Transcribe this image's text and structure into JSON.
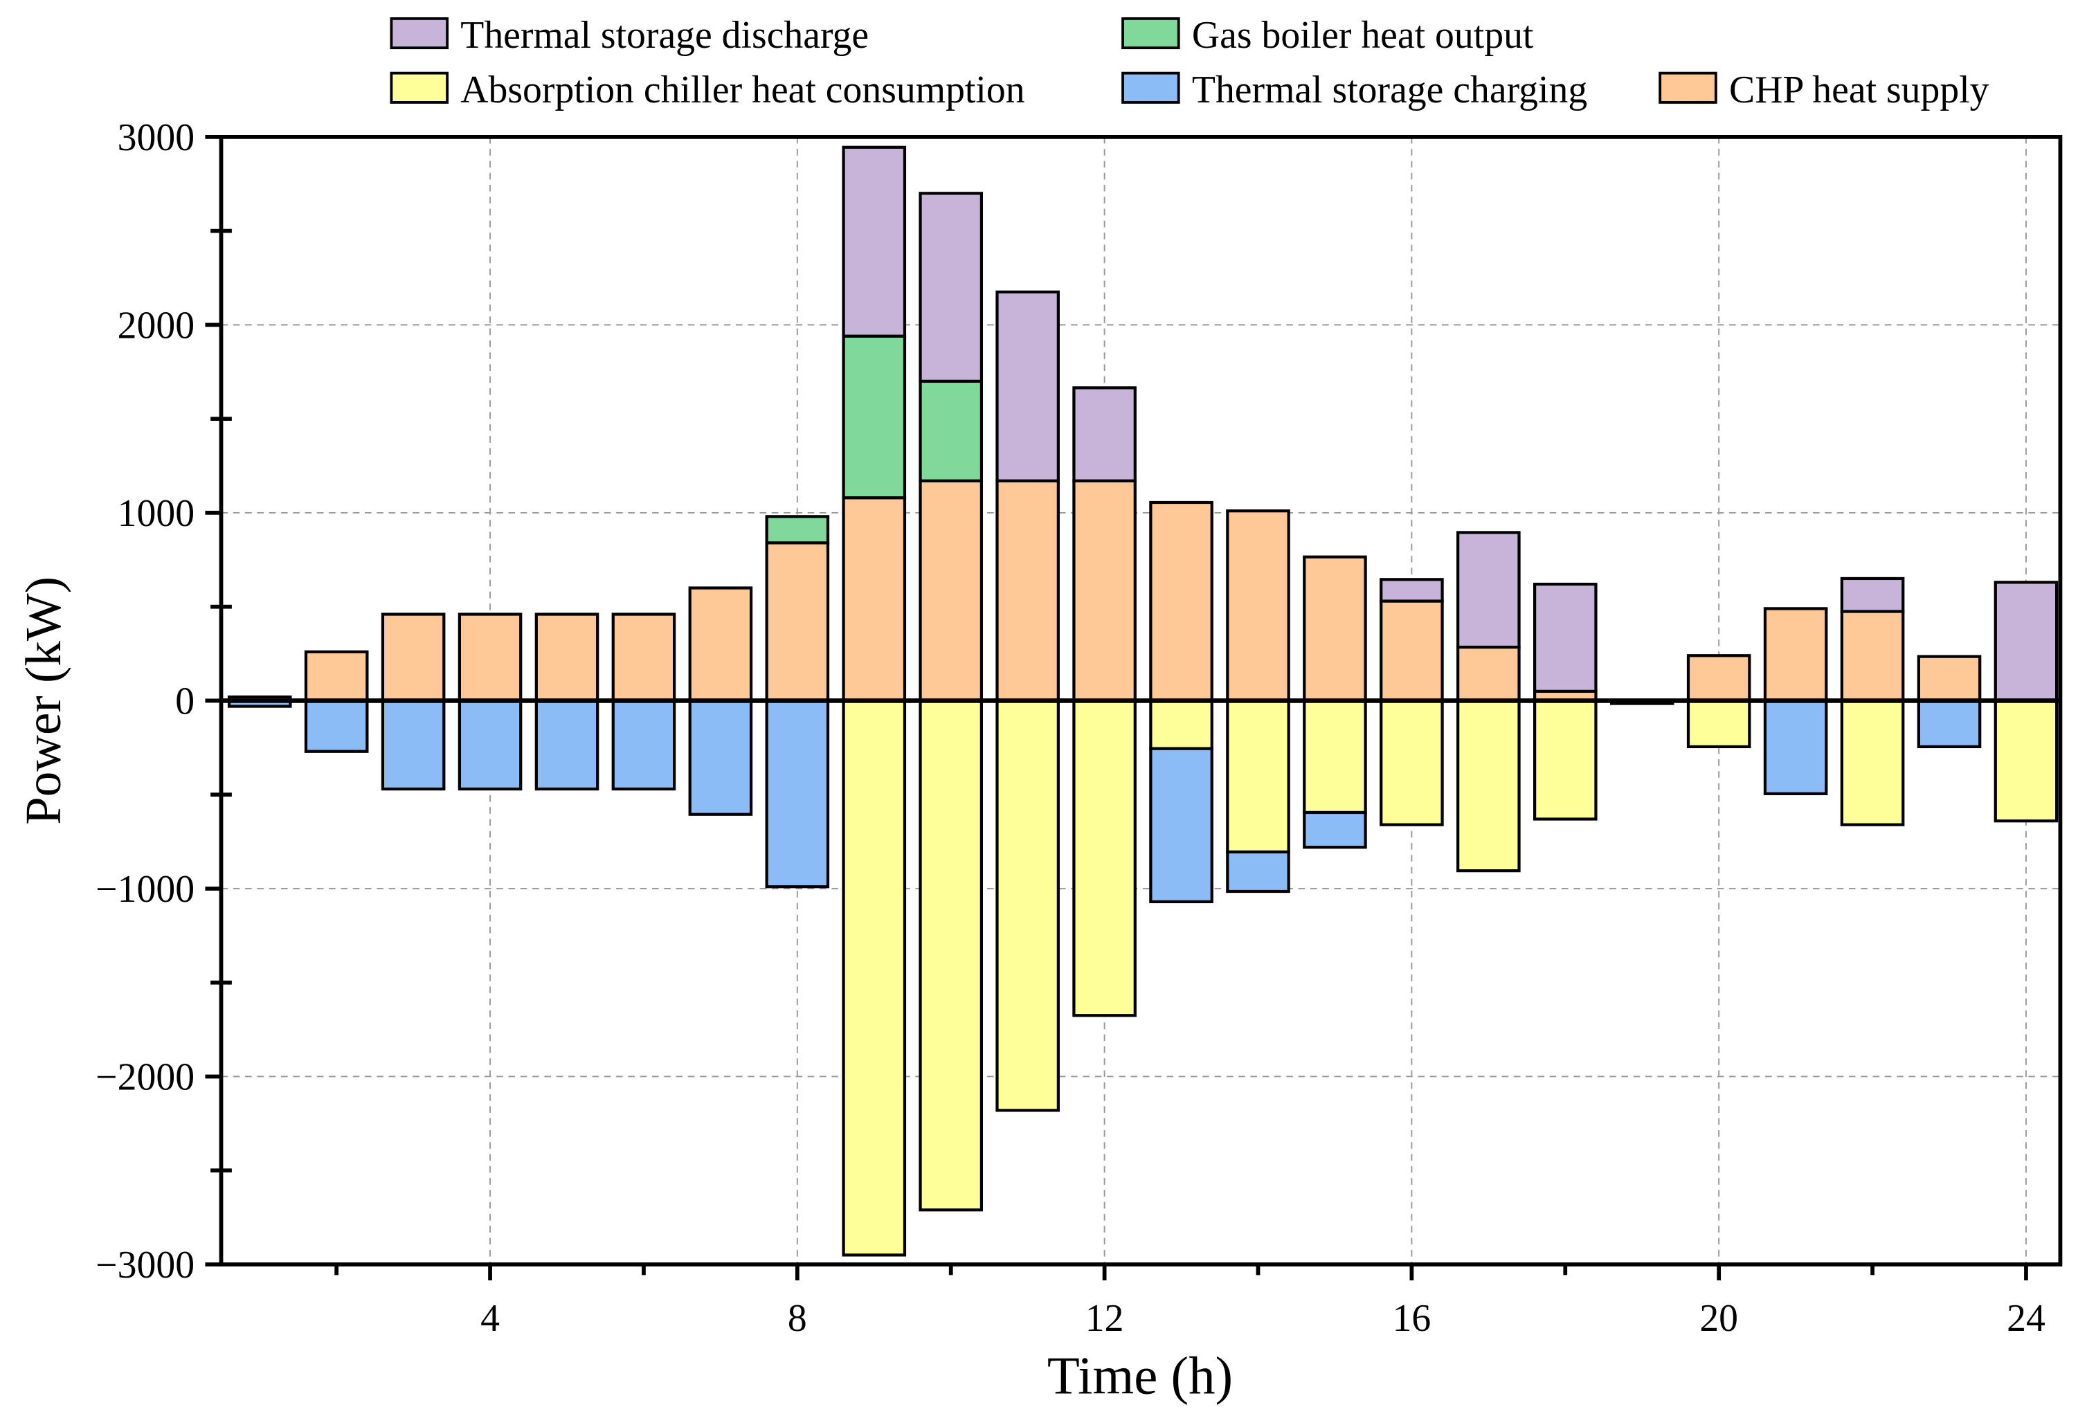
{
  "chart_data": {
    "type": "bar",
    "stacked": true,
    "title": "",
    "xlabel": "Time (h)",
    "ylabel": "Power (kW)",
    "ylim": [
      -3000,
      3000
    ],
    "xlim": [
      0.5,
      24.5
    ],
    "yticks": [
      -3000,
      -2000,
      -1000,
      0,
      1000,
      2000,
      3000
    ],
    "ytick_labels": [
      "−3000",
      "−2000",
      "−1000",
      "0",
      "1000",
      "2000",
      "3000"
    ],
    "xticks": [
      4,
      8,
      12,
      16,
      20,
      24
    ],
    "xtick_labels": [
      "4",
      "8",
      "12",
      "16",
      "20",
      "24"
    ],
    "grid": true,
    "legend_position": "top",
    "categories": [
      1,
      2,
      3,
      4,
      5,
      6,
      7,
      8,
      9,
      10,
      11,
      12,
      13,
      14,
      15,
      16,
      17,
      18,
      19,
      20,
      21,
      22,
      23,
      24
    ],
    "series": [
      {
        "name": "CHP heat supply",
        "color": "#ffc896",
        "values": [
          20,
          260,
          460,
          460,
          460,
          460,
          600,
          840,
          1080,
          1170,
          1170,
          1170,
          1055,
          1010,
          765,
          530,
          285,
          50,
          0,
          240,
          490,
          475,
          235,
          0
        ]
      },
      {
        "name": "Gas boiler heat output",
        "color": "#80d99b",
        "values": [
          0,
          0,
          0,
          0,
          0,
          0,
          0,
          140,
          860,
          530,
          0,
          0,
          0,
          0,
          0,
          0,
          0,
          0,
          0,
          0,
          0,
          0,
          0,
          0
        ]
      },
      {
        "name": "Thermal storage discharge",
        "color": "#c8b4d8",
        "values": [
          0,
          0,
          0,
          0,
          0,
          0,
          0,
          0,
          1005,
          1000,
          1005,
          495,
          0,
          0,
          0,
          115,
          610,
          570,
          0,
          0,
          0,
          175,
          0,
          630
        ]
      },
      {
        "name": "Absorption chiller heat consumption",
        "color": "#ffff99",
        "values": [
          0,
          0,
          0,
          0,
          0,
          0,
          0,
          0,
          -2950,
          -2710,
          -2180,
          -1675,
          -255,
          -805,
          -595,
          -660,
          -905,
          -630,
          0,
          -245,
          0,
          -660,
          0,
          -640
        ]
      },
      {
        "name": "Thermal storage charging",
        "color": "#8cbcf5",
        "values": [
          -30,
          -270,
          -470,
          -470,
          -470,
          -470,
          -605,
          -990,
          0,
          0,
          0,
          0,
          -815,
          -210,
          -185,
          0,
          0,
          0,
          -15,
          0,
          -495,
          0,
          -245,
          0
        ]
      }
    ],
    "legend": [
      {
        "label": "Thermal storage discharge",
        "color": "#c8b4d8"
      },
      {
        "label": "Gas boiler heat output",
        "color": "#80d99b"
      },
      {
        "label": "Absorption chiller heat consumption",
        "color": "#ffff99"
      },
      {
        "label": "Thermal storage charging",
        "color": "#8cbcf5"
      },
      {
        "label": "CHP heat supply",
        "color": "#ffc896"
      }
    ]
  }
}
